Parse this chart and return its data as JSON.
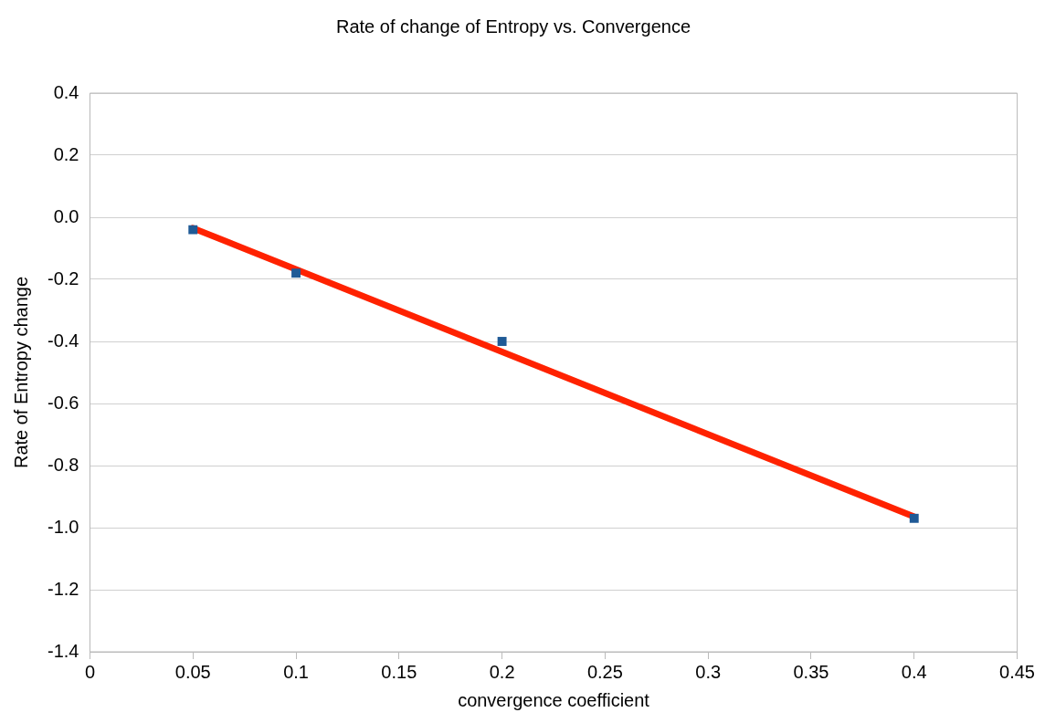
{
  "chart_data": {
    "type": "scatter",
    "title": "Rate of change of Entropy vs. Convergence",
    "xlabel": "convergence coefficient",
    "ylabel": "Rate of Entropy change",
    "series": [
      {
        "type": "scatter",
        "color": "#1f5a96",
        "x": [
          0.05,
          0.1,
          0.2,
          0.4
        ],
        "values": [
          -0.04,
          -0.18,
          -0.4,
          -0.97
        ],
        "marker": "square"
      },
      {
        "type": "line",
        "color": "#ff2200",
        "x": [
          0.05,
          0.4
        ],
        "values": [
          -0.035,
          -0.965
        ],
        "marker": "none"
      }
    ],
    "xlim": [
      0,
      0.45
    ],
    "xticks": [
      0,
      0.05,
      0.1,
      0.15,
      0.2,
      0.25,
      0.3,
      0.35,
      0.4,
      0.45
    ],
    "ylim": [
      -1.4,
      0.4
    ],
    "yticks": [
      {
        "value": -1.4,
        "label": "-1.4"
      },
      {
        "value": -1.2,
        "label": "-1.2"
      },
      {
        "value": -1.0,
        "label": "-1.0"
      },
      {
        "value": -0.8,
        "label": "-0.8"
      },
      {
        "value": -0.6,
        "label": "-0.6"
      },
      {
        "value": -0.4,
        "label": "-0.4"
      },
      {
        "value": -0.2,
        "label": "-0.2"
      },
      {
        "value": 0,
        "label": "0.0"
      },
      {
        "value": 0.2,
        "label": "0.2"
      },
      {
        "value": 0.4,
        "label": "0.4"
      }
    ],
    "grid": "y",
    "legend": false
  }
}
